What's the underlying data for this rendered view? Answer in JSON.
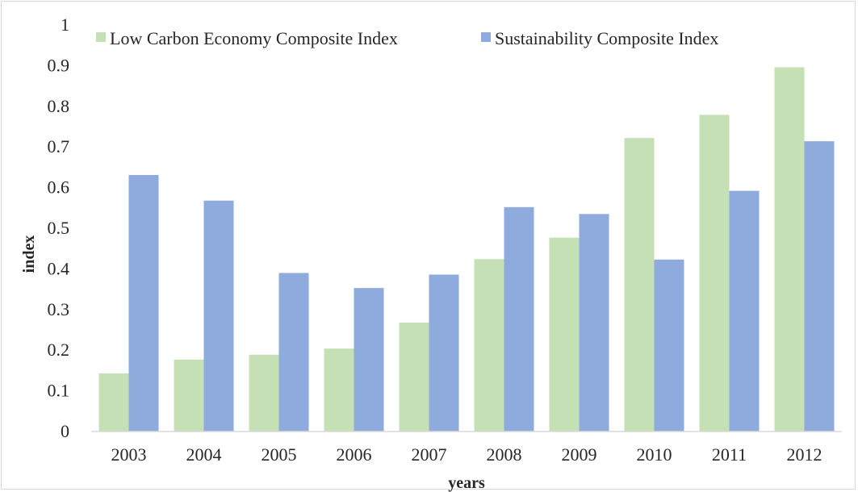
{
  "chart_data": {
    "type": "bar",
    "title": "",
    "xlabel": "years",
    "ylabel": "index",
    "ylim": [
      0,
      1
    ],
    "yticks": [
      "0",
      "0.1",
      "0.2",
      "0.3",
      "0.4",
      "0.5",
      "0.6",
      "0.7",
      "0.8",
      "0.9",
      "1"
    ],
    "categories": [
      "2003",
      "2004",
      "2005",
      "2006",
      "2007",
      "2008",
      "2009",
      "2010",
      "2011",
      "2012"
    ],
    "series": [
      {
        "name": "Low Carbon Economy Composite Index",
        "color": "#c5e0b4",
        "values": [
          0.143,
          0.177,
          0.189,
          0.204,
          0.268,
          0.424,
          0.477,
          0.722,
          0.779,
          0.896
        ]
      },
      {
        "name": "Sustainability Composite Index",
        "color": "#8faadc",
        "values": [
          0.631,
          0.568,
          0.39,
          0.353,
          0.386,
          0.552,
          0.535,
          0.423,
          0.592,
          0.714
        ]
      }
    ],
    "legend_position": "top",
    "grid": false
  }
}
